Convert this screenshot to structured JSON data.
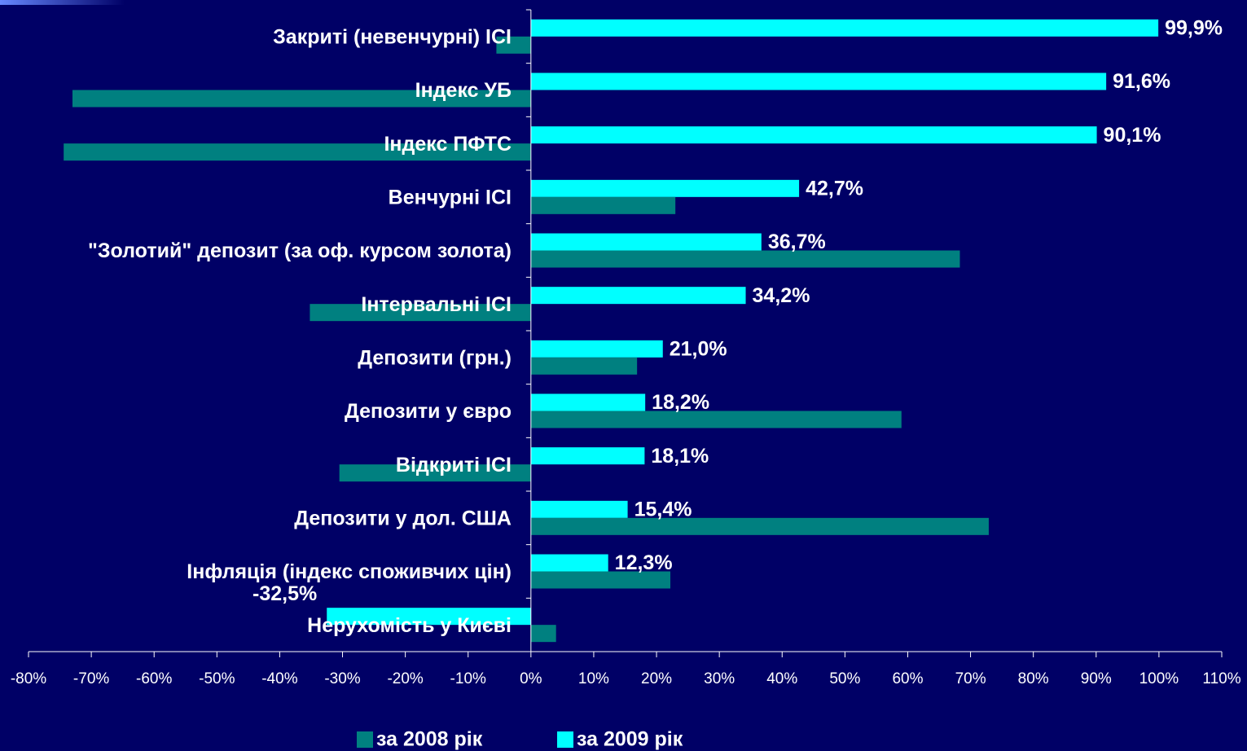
{
  "chart_data": {
    "type": "bar",
    "orientation": "horizontal",
    "categories": [
      "Закриті (невенчурні) ІСІ",
      "Індекс УБ",
      "Індекс ПФТС",
      "Венчурні ІСІ",
      "\"Золотий\" депозит (за оф. курсом золота)",
      "Інтервальні ІСІ",
      "Депозити (грн.)",
      "Депозити у євро",
      "Відкриті ІСІ",
      "Депозити у дол. США",
      "Інфляція (індекс споживчих цін)",
      "Нерухомість у Києві"
    ],
    "series": [
      {
        "name": "за 2008 рік",
        "color": "#008080",
        "values": [
          -5.5,
          -73.0,
          -74.4,
          23.0,
          68.3,
          -35.2,
          16.9,
          59.0,
          -30.5,
          72.9,
          22.2,
          4.0
        ]
      },
      {
        "name": "за 2009 рік",
        "color": "#00ffff",
        "values": [
          99.9,
          91.6,
          90.1,
          42.7,
          36.7,
          34.2,
          21.0,
          18.2,
          18.1,
          15.4,
          12.3,
          -32.5
        ],
        "value_labels": [
          "99,9%",
          "91,6%",
          "90,1%",
          "42,7%",
          "36,7%",
          "34,2%",
          "21,0%",
          "18,2%",
          "18,1%",
          "15,4%",
          "12,3%",
          "-32,5%"
        ]
      }
    ],
    "xlim": [
      -80,
      110
    ],
    "xticks": [
      {
        "value": -80,
        "label": "-80%"
      },
      {
        "value": -70,
        "label": "-70%"
      },
      {
        "value": -60,
        "label": "-60%"
      },
      {
        "value": -50,
        "label": "-50%"
      },
      {
        "value": -40,
        "label": "-40%"
      },
      {
        "value": -30,
        "label": "-30%"
      },
      {
        "value": -20,
        "label": "-20%"
      },
      {
        "value": -10,
        "label": "-10%"
      },
      {
        "value": 0,
        "label": "0%"
      },
      {
        "value": 10,
        "label": "10%"
      },
      {
        "value": 20,
        "label": "20%"
      },
      {
        "value": 30,
        "label": "30%"
      },
      {
        "value": 40,
        "label": "40%"
      },
      {
        "value": 50,
        "label": "50%"
      },
      {
        "value": 60,
        "label": "60%"
      },
      {
        "value": 70,
        "label": "70%"
      },
      {
        "value": 80,
        "label": "80%"
      },
      {
        "value": 90,
        "label": "90%"
      },
      {
        "value": 100,
        "label": "100%"
      },
      {
        "value": 110,
        "label": "110%"
      }
    ],
    "legend": "bottom"
  }
}
